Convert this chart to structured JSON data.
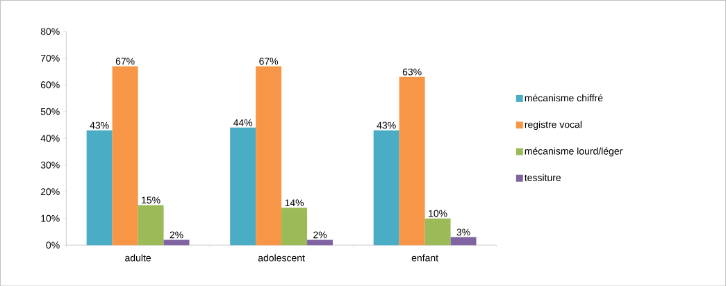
{
  "chart_data": {
    "type": "bar",
    "categories": [
      "adulte",
      "adolescent",
      "enfant"
    ],
    "series": [
      {
        "name": "mécanisme chiffré",
        "color": "#4bacc6",
        "values": [
          43,
          44,
          43
        ],
        "value_labels": [
          "43%",
          "44%",
          "43%"
        ]
      },
      {
        "name": "registre vocal",
        "color": "#f79646",
        "values": [
          67,
          67,
          63
        ],
        "value_labels": [
          "67%",
          "67%",
          "63%"
        ]
      },
      {
        "name": "mécanisme lourd/léger",
        "color": "#9bbb59",
        "values": [
          15,
          14,
          10
        ],
        "value_labels": [
          "15%",
          "14%",
          "10%"
        ]
      },
      {
        "name": "tessiture",
        "color": "#8064a2",
        "values": [
          2,
          2,
          3
        ],
        "value_labels": [
          "2%",
          "2%",
          "3%"
        ]
      }
    ],
    "ylim": [
      0,
      80
    ],
    "yticks": [
      {
        "value": 0,
        "label": "0%"
      },
      {
        "value": 10,
        "label": "10%"
      },
      {
        "value": 20,
        "label": "20%"
      },
      {
        "value": 30,
        "label": "30%"
      },
      {
        "value": 40,
        "label": "40%"
      },
      {
        "value": 50,
        "label": "50%"
      },
      {
        "value": 60,
        "label": "60%"
      },
      {
        "value": 70,
        "label": "70%"
      },
      {
        "value": 80,
        "label": "80%"
      }
    ],
    "grid": false,
    "legend": "right"
  }
}
